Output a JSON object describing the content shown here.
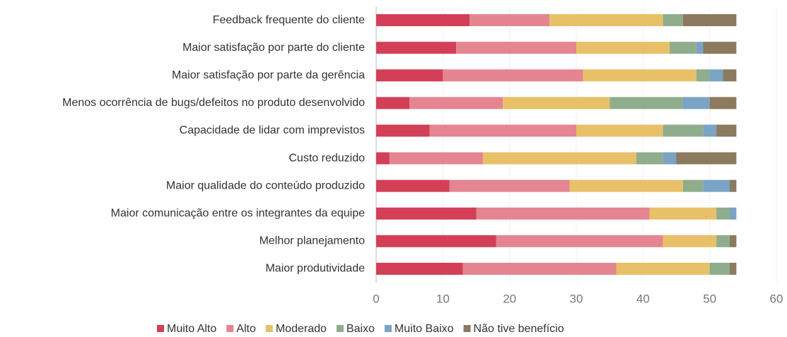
{
  "chart_data": {
    "type": "stacked_barh",
    "categories": [
      "Feedback frequente do cliente",
      "Maior satisfação por parte do cliente",
      "Maior satisfação por parte da gerência",
      "Menos ocorrência de bugs/defeitos no produto desenvolvido",
      "Capacidade de lidar com imprevistos",
      "Custo reduzido",
      "Maior qualidade do conteúdo produzido",
      "Maior comunicação entre os integrantes da equipe",
      "Melhor planejamento",
      "Maior produtividade"
    ],
    "series": [
      {
        "name": "Muito Alto",
        "color": "#d23f56",
        "values": [
          14,
          12,
          10,
          5,
          8,
          2,
          11,
          15,
          18,
          13
        ]
      },
      {
        "name": "Alto",
        "color": "#e48591",
        "values": [
          12,
          18,
          21,
          14,
          22,
          14,
          18,
          26,
          25,
          23
        ]
      },
      {
        "name": "Moderado",
        "color": "#e8c068",
        "values": [
          17,
          14,
          17,
          16,
          13,
          23,
          17,
          10,
          8,
          14
        ]
      },
      {
        "name": "Baixo",
        "color": "#8fad8c",
        "values": [
          3,
          4,
          2,
          11,
          6,
          4,
          3,
          2,
          2,
          3
        ]
      },
      {
        "name": "Muito Baixo",
        "color": "#7aa3c4",
        "values": [
          0,
          1,
          2,
          4,
          2,
          2,
          4,
          1,
          0,
          0
        ]
      },
      {
        "name": "Não tive benefício",
        "color": "#8b7a5d",
        "values": [
          8,
          5,
          2,
          4,
          3,
          9,
          1,
          0,
          1,
          1
        ]
      }
    ],
    "xlim": [
      0,
      60
    ],
    "xticks": [
      0,
      10,
      20,
      30,
      40,
      50,
      60
    ],
    "grid": true,
    "legend": "bottom"
  }
}
